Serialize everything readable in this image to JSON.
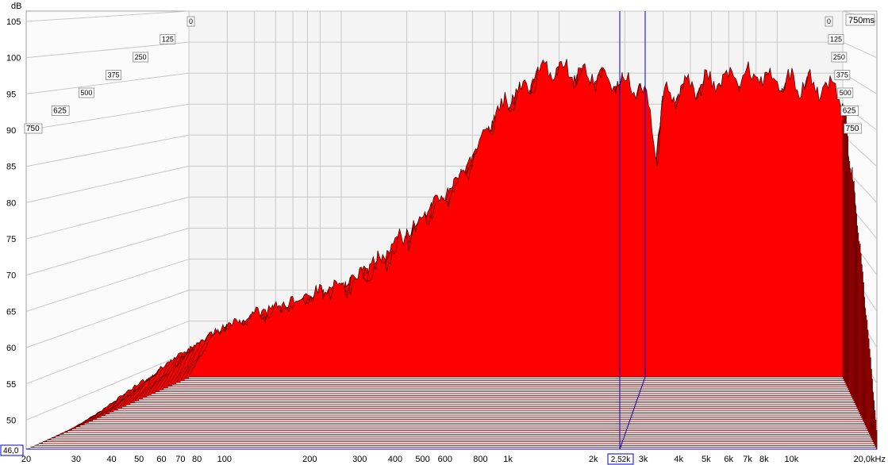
{
  "chart_data": {
    "type": "waterfall",
    "y_unit": "dB",
    "x_unit": "Hz",
    "y_ticks": [
      "105",
      "100",
      "95",
      "90",
      "85",
      "80",
      "75",
      "70",
      "65",
      "60",
      "55",
      "50"
    ],
    "x_ticks": [
      "20",
      "30",
      "40",
      "50",
      "60",
      "70",
      "80",
      "100",
      "200",
      "300",
      "400",
      "500",
      "600",
      "800",
      "1k",
      "2k",
      "3k",
      "4k",
      "5k",
      "6k",
      "7k",
      "8k",
      "10k"
    ],
    "x_end_label": "20,0kHz",
    "y_floor_readout": "46,0",
    "time_ticks": [
      "0",
      "125",
      "250",
      "375",
      "500",
      "625",
      "750"
    ],
    "time_corner_label": "750ms",
    "cursor_readout": "2,52k",
    "xlim": [
      20,
      20000
    ],
    "ylim": [
      46,
      105
    ],
    "zlim_ms": [
      0,
      750
    ],
    "x_scale": "log",
    "slice_count": 40,
    "colors": {
      "slice_fill": "#ff0000",
      "slice_edge": "#3a0000",
      "cursor": "#0000cc",
      "grid": "#c8c8c8"
    },
    "front_slice_profile": {
      "freq_hz": [
        20,
        25,
        30,
        40,
        50,
        60,
        70,
        80,
        100,
        120,
        150,
        200,
        300,
        400,
        500,
        600,
        800,
        1000,
        1500,
        2000,
        2300,
        2500,
        2600,
        2800,
        3000,
        4000,
        5000,
        6000,
        8000,
        10000,
        14000,
        17000,
        19000,
        20000
      ],
      "level_db": [
        46,
        53,
        55,
        57,
        58,
        59,
        60,
        61,
        62,
        63.5,
        66,
        71,
        78,
        85,
        92,
        96,
        100,
        101,
        100,
        99,
        98,
        97,
        94,
        85,
        96,
        98,
        99,
        99,
        100,
        99,
        98.5,
        98,
        97,
        96
      ]
    },
    "last_slice_profile": {
      "freq_hz": [
        20,
        100,
        200,
        400,
        800,
        2000,
        5000,
        10000,
        20000
      ],
      "level_db": [
        46,
        46,
        46,
        46,
        46,
        46,
        46,
        46,
        46
      ]
    }
  }
}
